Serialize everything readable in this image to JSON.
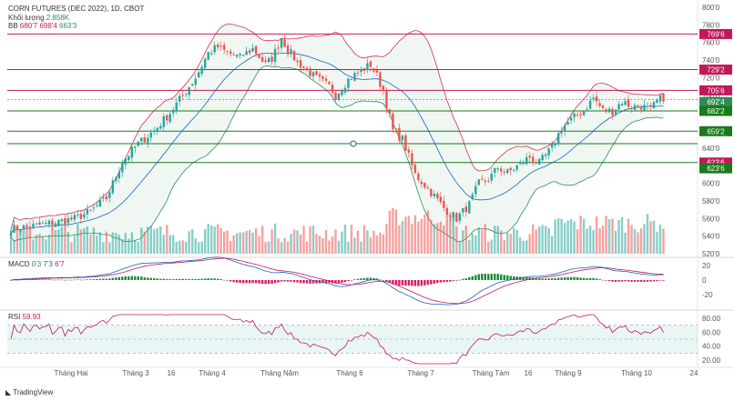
{
  "header": {
    "title": "CORN FUTURES (DEC 2022), 1D, CBOT",
    "volume_label": "Khối lượng",
    "volume_value": "2.858K",
    "bb_label": "BB",
    "bb_values": [
      "680'7",
      "698'4",
      "663'3"
    ]
  },
  "macd": {
    "label": "MACD",
    "values": [
      "0'3",
      "7'3",
      "6'7"
    ]
  },
  "rsi": {
    "label": "RSI",
    "value": "59.93"
  },
  "brand": "TradingView",
  "price_labels": [
    {
      "text": "769'6",
      "value": 769.6,
      "color": "#c2185b"
    },
    {
      "text": "729'2",
      "value": 729.2,
      "color": "#c2185b"
    },
    {
      "text": "705'6",
      "value": 705.6,
      "color": "#c2185b"
    },
    {
      "text": "692'4",
      "value": 692.4,
      "color": "#2e8b57"
    },
    {
      "text": "682'2",
      "value": 682.2,
      "color": "#1b7a1b"
    },
    {
      "text": "659'2",
      "value": 659.2,
      "color": "#1b7a1b"
    },
    {
      "text": "623'6",
      "value": 623.6,
      "color": "#c2185b"
    },
    {
      "text": "623'6",
      "value": 617.0,
      "color": "#1b7a1b"
    }
  ],
  "chart_data": {
    "type": "candlestick",
    "title": "CORN FUTURES (DEC 2022), 1D, CBOT",
    "x_ticks": [
      "Tháng Hai",
      "Tháng 3",
      "16",
      "Tháng 4",
      "Tháng Năm",
      "Tháng 6",
      "Tháng 7",
      "Tháng Tám",
      "16",
      "Tháng 9",
      "Tháng 10",
      "24"
    ],
    "y_ticks": [
      "800'0",
      "780'0",
      "760'0",
      "740'0",
      "720'0",
      "700'0",
      "680'0",
      "660'0",
      "640'0",
      "620'0",
      "600'0",
      "580'0",
      "560'0",
      "540'0",
      "520'0"
    ],
    "ylim": [
      520,
      800
    ],
    "horizontal_levels": [
      {
        "value": 769.6,
        "color": "#c2185b"
      },
      {
        "value": 729.2,
        "color": "#c2185b"
      },
      {
        "value": 705.6,
        "color": "#c2185b"
      },
      {
        "value": 682.2,
        "color": "#1b7a1b"
      },
      {
        "value": 659.2,
        "color": "#1b7a1b"
      },
      {
        "value": 645.0,
        "color": "#1b7a1b"
      },
      {
        "value": 623.6,
        "color": "#1b7a1b"
      }
    ],
    "close_anchors": [
      [
        0,
        548
      ],
      [
        10,
        553
      ],
      [
        20,
        560
      ],
      [
        25,
        568
      ],
      [
        30,
        583
      ],
      [
        32,
        600
      ],
      [
        35,
        625
      ],
      [
        40,
        645
      ],
      [
        45,
        660
      ],
      [
        50,
        680
      ],
      [
        55,
        705
      ],
      [
        58,
        720
      ],
      [
        62,
        748
      ],
      [
        65,
        755
      ],
      [
        68,
        748
      ],
      [
        72,
        743
      ],
      [
        76,
        753
      ],
      [
        80,
        735
      ],
      [
        82,
        742
      ],
      [
        85,
        765
      ],
      [
        87,
        752
      ],
      [
        90,
        738
      ],
      [
        95,
        722
      ],
      [
        100,
        710
      ],
      [
        102,
        700
      ],
      [
        106,
        718
      ],
      [
        110,
        728
      ],
      [
        113,
        735
      ],
      [
        115,
        722
      ],
      [
        117,
        705
      ],
      [
        120,
        660
      ],
      [
        123,
        650
      ],
      [
        127,
        610
      ],
      [
        132,
        590
      ],
      [
        136,
        572
      ],
      [
        140,
        560
      ],
      [
        144,
        576
      ],
      [
        147,
        600
      ],
      [
        150,
        604
      ],
      [
        153,
        618
      ],
      [
        156,
        612
      ],
      [
        160,
        622
      ],
      [
        163,
        630
      ],
      [
        166,
        623
      ],
      [
        170,
        640
      ],
      [
        173,
        663
      ],
      [
        176,
        672
      ],
      [
        180,
        683
      ],
      [
        183,
        697
      ],
      [
        186,
        683
      ],
      [
        189,
        682
      ],
      [
        192,
        693
      ],
      [
        195,
        687
      ],
      [
        198,
        688
      ],
      [
        201,
        683
      ],
      [
        203,
        693
      ],
      [
        205,
        698
      ]
    ],
    "volume_ylim": [
      0,
      100
    ],
    "macd_ticks": [
      "20",
      "0",
      "-20"
    ],
    "macd_ylim": [
      -35,
      25
    ],
    "rsi_ticks": [
      "80.00",
      "60.00",
      "40.00",
      "20.00"
    ],
    "rsi_ylim": [
      15,
      85
    ],
    "rsi_band": [
      30,
      70
    ]
  }
}
